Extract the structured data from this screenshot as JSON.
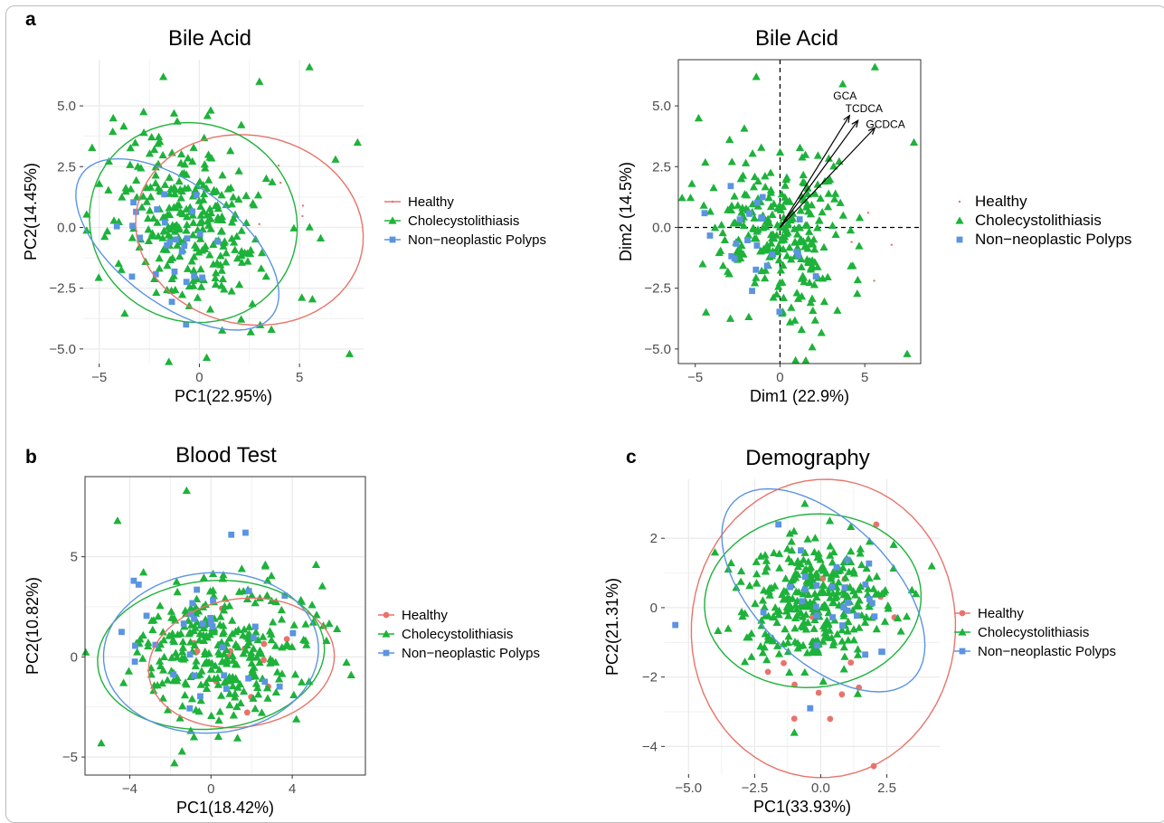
{
  "figure": {
    "panel_letters": [
      "a",
      "b",
      "c"
    ],
    "colors": {
      "healthy": "#E8736B",
      "cholecystolithiasis": "#1DB23A",
      "polyps": "#5B94E0",
      "axis_text": "#4d4d4d",
      "panel_bg": "#ffffff",
      "grid": "#ebebeb"
    }
  },
  "chart_data": [
    {
      "type": "scatter",
      "title": "Bile Acid",
      "xlabel": "PC1(22.95%)",
      "ylabel": "PC2(14.45%)",
      "xlim": [
        -5.8,
        8.2
      ],
      "ylim": [
        -5.6,
        6.9
      ],
      "xticks": [
        -5,
        0,
        5
      ],
      "yticks": [
        -5.0,
        -2.5,
        0.0,
        2.5,
        5.0
      ],
      "ytick_labels": [
        "−5.0",
        "−2.5",
        "0.0",
        "2.5",
        "5.0"
      ],
      "xtick_labels": [
        "−5",
        "0",
        "5"
      ],
      "grid": true,
      "legend_position": "right",
      "series": [
        {
          "name": "Healthy",
          "marker": "dot-small",
          "n": 6,
          "center": [
            4.4,
            1.0
          ],
          "spread": [
            1.6,
            1.2
          ],
          "rot": 0,
          "seed": 11
        },
        {
          "name": "Cholecystolithiasis",
          "marker": "triangle",
          "n": 290,
          "center": [
            -0.4,
            0.1
          ],
          "spread": [
            2.2,
            1.8
          ],
          "rot": -0.45,
          "seed": 12
        },
        {
          "name": "Non−neoplastic Polyps",
          "marker": "square",
          "n": 26,
          "center": [
            -1.4,
            -0.6
          ],
          "spread": [
            1.5,
            1.1
          ],
          "rot": -0.5,
          "seed": 13
        }
      ],
      "outliers": [
        {
          "series": 1,
          "points": [
            [
              5.5,
              6.6
            ],
            [
              -1.8,
              6.2
            ],
            [
              7.5,
              -5.2
            ],
            [
              7.9,
              3.5
            ],
            [
              3.6,
              -4.2
            ],
            [
              -4.3,
              4.5
            ],
            [
              -5.0,
              1.8
            ],
            [
              6.8,
              2.8
            ],
            [
              3.0,
              6.0
            ]
          ]
        }
      ],
      "ellipses": [
        {
          "series": 0,
          "center": [
            2.5,
            -0.1
          ],
          "rx": 5.7,
          "ry": 3.9,
          "rot": -0.1
        },
        {
          "series": 1,
          "center": [
            -0.3,
            0.2
          ],
          "rx": 5.2,
          "ry": 4.1,
          "rot": -0.1
        },
        {
          "series": 2,
          "center": [
            -1.1,
            -0.7
          ],
          "rx": 5.6,
          "ry": 2.6,
          "rot": -0.5
        }
      ]
    },
    {
      "type": "scatter",
      "title": "Bile Acid",
      "xlabel": "Dim1 (22.9%)",
      "ylabel": "Dim2 (14.5%)",
      "xlim": [
        -6.0,
        8.3
      ],
      "ylim": [
        -5.6,
        6.9
      ],
      "xticks": [
        -5,
        0,
        5
      ],
      "yticks": [
        -5.0,
        -2.5,
        0.0,
        2.5,
        5.0
      ],
      "ytick_labels": [
        "−5.0",
        "−2.5",
        "0.0",
        "2.5",
        "5.0"
      ],
      "xtick_labels": [
        "−5",
        "0",
        "5"
      ],
      "grid": false,
      "legend_position": "right",
      "series": [
        {
          "name": "Healthy",
          "marker": "dot-small",
          "n": 5,
          "center": [
            4.6,
            -0.5
          ],
          "spread": [
            1.4,
            1.0
          ],
          "rot": 0,
          "seed": 21
        },
        {
          "name": "Cholecystolithiasis",
          "marker": "triangle",
          "n": 270,
          "center": [
            0.0,
            -0.3
          ],
          "spread": [
            2.0,
            1.6
          ],
          "rot": -0.35,
          "seed": 22
        },
        {
          "name": "Non−neoplastic Polyps",
          "marker": "square",
          "n": 24,
          "center": [
            -1.0,
            -1.0
          ],
          "spread": [
            1.4,
            1.0
          ],
          "rot": -0.5,
          "seed": 23
        }
      ],
      "outliers": [
        {
          "series": 1,
          "points": [
            [
              5.6,
              6.6
            ],
            [
              -1.4,
              6.2
            ],
            [
              7.5,
              -5.2
            ],
            [
              7.9,
              3.5
            ],
            [
              -5.2,
              1.8
            ],
            [
              -4.8,
              4.5
            ],
            [
              3.7,
              5.9
            ]
          ]
        }
      ],
      "arrows": [
        {
          "label": "GCA",
          "end": [
            4.1,
            4.6
          ]
        },
        {
          "label": "TCDCA",
          "end": [
            4.6,
            4.4
          ]
        },
        {
          "label": "GCDCA",
          "end": [
            5.6,
            4.1
          ]
        }
      ],
      "reference_lines": {
        "x": 0,
        "y": 0
      }
    },
    {
      "type": "scatter",
      "title": "Blood Test",
      "xlabel": "PC1(18.42%)",
      "ylabel": "PC2(10.82%)",
      "xlim": [
        -6.2,
        7.6
      ],
      "ylim": [
        -5.9,
        9.0
      ],
      "xticks": [
        -4,
        0,
        4
      ],
      "yticks": [
        -5,
        0,
        5
      ],
      "ytick_labels": [
        "−5",
        "0",
        "5"
      ],
      "xtick_labels": [
        "−4",
        "0",
        "4"
      ],
      "grid": true,
      "legend_position": "right",
      "series": [
        {
          "name": "Healthy",
          "marker": "dot",
          "n": 14,
          "center": [
            1.2,
            -0.4
          ],
          "spread": [
            1.8,
            1.3
          ],
          "rot": 0,
          "seed": 31
        },
        {
          "name": "Cholecystolithiasis",
          "marker": "triangle",
          "n": 300,
          "center": [
            0.2,
            0.3
          ],
          "spread": [
            2.4,
            1.8
          ],
          "rot": 0,
          "seed": 32
        },
        {
          "name": "Non−neoplastic Polyps",
          "marker": "square",
          "n": 32,
          "center": [
            -0.5,
            0.4
          ],
          "spread": [
            2.1,
            1.7
          ],
          "rot": 0,
          "seed": 33
        }
      ],
      "outliers": [
        {
          "series": 1,
          "points": [
            [
              -1.2,
              8.3
            ],
            [
              -4.6,
              6.8
            ],
            [
              -5.4,
              -4.3
            ],
            [
              6.9,
              -0.9
            ],
            [
              5.2,
              2.1
            ],
            [
              -1.8,
              -5.3
            ]
          ]
        },
        {
          "series": 2,
          "points": [
            [
              1.7,
              6.2
            ],
            [
              1.0,
              6.1
            ],
            [
              -3.8,
              3.8
            ]
          ]
        }
      ],
      "ellipses": [
        {
          "series": 0,
          "center": [
            1.5,
            -0.3
          ],
          "rx": 4.6,
          "ry": 3.2,
          "rot": 0.15
        },
        {
          "series": 1,
          "center": [
            0.0,
            0.1
          ],
          "rx": 5.6,
          "ry": 3.7,
          "rot": 0.1
        },
        {
          "series": 2,
          "center": [
            0.0,
            0.2
          ],
          "rx": 5.3,
          "ry": 4.0,
          "rot": 0.08
        }
      ]
    },
    {
      "type": "scatter",
      "title": "Demography",
      "xlabel": "PC1(33.93%)",
      "ylabel": "PC2(21.31%)",
      "xlim": [
        -5.9,
        4.5
      ],
      "ylim": [
        -4.8,
        3.7
      ],
      "xticks": [
        -5.0,
        -2.5,
        0.0,
        2.5
      ],
      "yticks": [
        -4,
        -2,
        0,
        2
      ],
      "ytick_labels": [
        "−4",
        "−2",
        "0",
        "2"
      ],
      "xtick_labels": [
        "−5.0",
        "−2.5",
        "0.0",
        "2.5"
      ],
      "grid": true,
      "legend_position": "right",
      "series": [
        {
          "name": "Healthy",
          "marker": "dot",
          "n": 14,
          "center": [
            0.3,
            -0.6
          ],
          "spread": [
            1.5,
            1.7
          ],
          "rot": 0,
          "seed": 41
        },
        {
          "name": "Cholecystolithiasis",
          "marker": "triangle",
          "n": 320,
          "center": [
            -0.2,
            0.2
          ],
          "spread": [
            1.4,
            1.0
          ],
          "rot": 0,
          "seed": 42
        },
        {
          "name": "Non−neoplastic Polyps",
          "marker": "square",
          "n": 28,
          "center": [
            0.3,
            0.4
          ],
          "spread": [
            1.2,
            0.9
          ],
          "rot": -0.5,
          "seed": 43
        }
      ],
      "outliers": [
        {
          "series": 1,
          "points": [
            [
              -0.6,
              3.0
            ],
            [
              -4.0,
              1.6
            ],
            [
              -3.5,
              -0.6
            ],
            [
              -1.0,
              -3.6
            ],
            [
              3.6,
              0.4
            ],
            [
              4.2,
              1.2
            ]
          ]
        },
        {
          "series": 2,
          "points": [
            [
              -5.5,
              -0.5
            ],
            [
              -1.6,
              2.4
            ],
            [
              -0.4,
              -2.9
            ]
          ]
        },
        {
          "series": 0,
          "points": [
            [
              -1.0,
              -3.2
            ],
            [
              2.1,
              2.4
            ],
            [
              -1.4,
              -1.6
            ],
            [
              0.8,
              -2.5
            ]
          ]
        }
      ],
      "ellipses": [
        {
          "series": 0,
          "center": [
            0.1,
            -0.6
          ],
          "rx": 5.0,
          "ry": 4.3,
          "rot": 0.05
        },
        {
          "series": 1,
          "center": [
            -0.3,
            0.2
          ],
          "rx": 4.1,
          "ry": 2.5,
          "rot": 0.05
        },
        {
          "series": 2,
          "center": [
            0.1,
            0.5
          ],
          "rx": 4.3,
          "ry": 2.2,
          "rot": -0.55
        }
      ]
    }
  ]
}
